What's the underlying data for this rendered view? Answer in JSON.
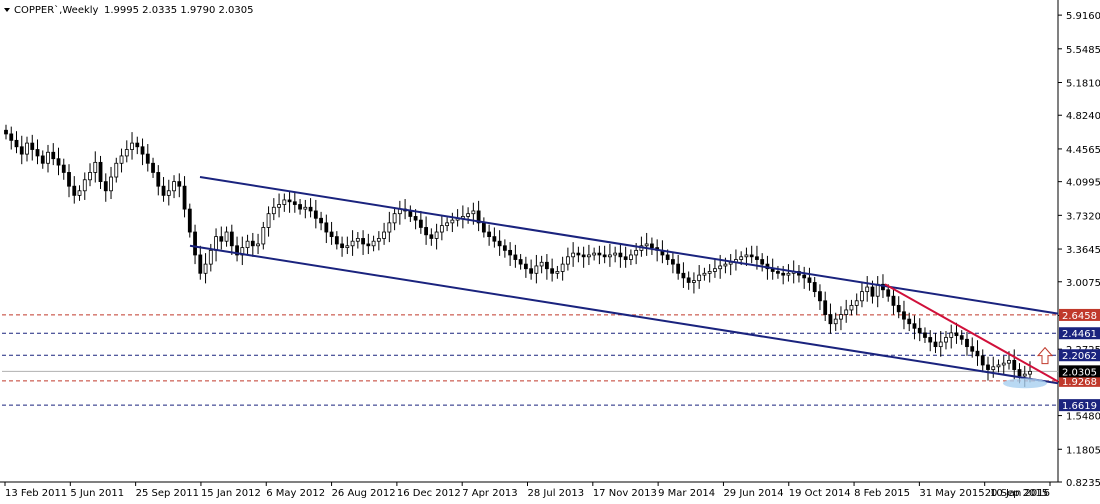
{
  "header": {
    "symbol": "COPPER`,Weekly",
    "ohlc": "1.9995 2.0335 1.9790 2.0305"
  },
  "chart_data": {
    "type": "candlestick",
    "title": "COPPER`,Weekly",
    "ylim": [
      0.8235,
      5.95
    ],
    "yticks": [
      "5.9160",
      "5.5485",
      "5.1810",
      "4.8240",
      "4.4565",
      "4.0995",
      "3.7320",
      "3.3645",
      "3.0075",
      "2.6400",
      "2.2725",
      "1.9155",
      "1.5480",
      "1.1805",
      "0.8235"
    ],
    "xticks": [
      "13 Feb 2011",
      "5 Jun 2011",
      "25 Sep 2011",
      "15 Jan 2012",
      "6 May 2012",
      "26 Aug 2012",
      "16 Dec 2012",
      "7 Apr 2013",
      "28 Jul 2013",
      "17 Nov 2013",
      "9 Mar 2014",
      "29 Jun 2014",
      "19 Oct 2014",
      "8 Feb 2015",
      "31 May 2015",
      "20 Sep 2015",
      "10 Jan 2016"
    ],
    "horizontal_levels": [
      {
        "label": "2.6458",
        "value": 2.6458,
        "color": "#c0392b"
      },
      {
        "label": "2.4461",
        "value": 2.4461,
        "color": "#1a237e"
      },
      {
        "label": "2.2062",
        "value": 2.2062,
        "color": "#1a237e"
      },
      {
        "label": "1.9268",
        "value": 1.9268,
        "color": "#c0392b"
      },
      {
        "label": "1.6619",
        "value": 1.6619,
        "color": "#1a237e"
      }
    ],
    "current_price": {
      "label": "2.0305",
      "value": 2.0305
    },
    "trend_channel": {
      "color": "#1a237e",
      "upper": [
        {
          "date": "Jan 2012",
          "y": 4.15
        },
        {
          "date": "Mar 2016",
          "y": 2.66
        }
      ],
      "lower": [
        {
          "date": "Jan 2012",
          "y": 3.4
        },
        {
          "date": "Mar 2016",
          "y": 1.9
        }
      ]
    },
    "resistance_line": {
      "color": "#d0103a",
      "points": [
        {
          "date": "Mar 2015",
          "y": 2.98
        },
        {
          "date": "Mar 2016",
          "y": 1.92
        }
      ]
    },
    "candles": [
      4.62,
      4.55,
      4.48,
      4.4,
      4.52,
      4.45,
      4.38,
      4.3,
      4.42,
      4.35,
      4.28,
      4.2,
      4.05,
      3.95,
      4.0,
      4.12,
      4.2,
      4.31,
      4.1,
      4.0,
      4.15,
      4.3,
      4.38,
      4.45,
      4.52,
      4.48,
      4.4,
      4.3,
      4.2,
      4.05,
      3.95,
      4.0,
      4.1,
      4.05,
      3.8,
      3.55,
      3.3,
      3.1,
      3.2,
      3.35,
      3.5,
      3.45,
      3.55,
      3.4,
      3.3,
      3.38,
      3.45,
      3.4,
      3.42,
      3.6,
      3.75,
      3.82,
      3.85,
      3.9,
      3.88,
      3.85,
      3.8,
      3.82,
      3.78,
      3.7,
      3.65,
      3.55,
      3.5,
      3.42,
      3.38,
      3.4,
      3.45,
      3.48,
      3.42,
      3.4,
      3.45,
      3.48,
      3.55,
      3.65,
      3.75,
      3.8,
      3.78,
      3.72,
      3.68,
      3.6,
      3.52,
      3.48,
      3.55,
      3.62,
      3.65,
      3.68,
      3.7,
      3.72,
      3.75,
      3.78,
      3.65,
      3.55,
      3.5,
      3.45,
      3.4,
      3.35,
      3.3,
      3.25,
      3.2,
      3.15,
      3.1,
      3.18,
      3.22,
      3.15,
      3.1,
      3.12,
      3.2,
      3.28,
      3.32,
      3.3,
      3.28,
      3.3,
      3.32,
      3.3,
      3.28,
      3.3,
      3.32,
      3.28,
      3.25,
      3.3,
      3.35,
      3.4,
      3.42,
      3.38,
      3.35,
      3.3,
      3.25,
      3.2,
      3.1,
      3.05,
      3.0,
      3.02,
      3.08,
      3.1,
      3.12,
      3.15,
      3.18,
      3.2,
      3.22,
      3.25,
      3.28,
      3.3,
      3.28,
      3.25,
      3.2,
      3.15,
      3.12,
      3.1,
      3.08,
      3.1,
      3.12,
      3.08,
      3.05,
      3.0,
      2.9,
      2.8,
      2.65,
      2.55,
      2.6,
      2.65,
      2.7,
      2.75,
      2.8,
      2.9,
      2.95,
      2.85,
      2.98,
      2.92,
      2.85,
      2.75,
      2.68,
      2.6,
      2.55,
      2.5,
      2.45,
      2.4,
      2.35,
      2.3,
      2.35,
      2.4,
      2.45,
      2.42,
      2.38,
      2.3,
      2.25,
      2.2,
      2.1,
      2.05,
      2.08,
      2.1,
      2.12,
      2.15,
      2.05,
      1.98,
      2.0,
      2.03
    ]
  }
}
